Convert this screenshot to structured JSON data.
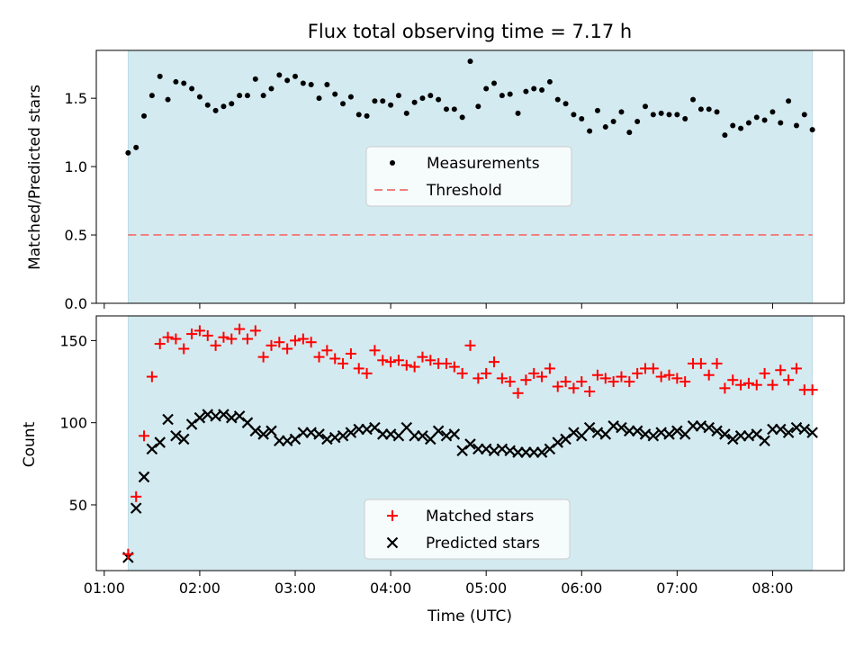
{
  "chart_data": [
    {
      "type": "scatter",
      "title": "Flux total observing time = 7.17 h",
      "xlabel": "",
      "ylabel": "Matched/Predicted stars",
      "xlim": [
        "00:55",
        "08:45"
      ],
      "ylim": [
        0,
        1.85
      ],
      "yticks": [
        0.0,
        0.5,
        1.0,
        1.5
      ],
      "ytick_labels": [
        "0.0",
        "0.5",
        "1.0",
        "1.5"
      ],
      "observing_window": [
        "01:15",
        "08:25"
      ],
      "colors": {
        "observing_window": "#d3eaf0",
        "measurements": "#000000",
        "threshold": "#f08080"
      },
      "legend_position": "center",
      "series": [
        {
          "name": "Measurements",
          "x": [
            "01:15",
            "01:20",
            "01:25",
            "01:30",
            "01:35",
            "01:40",
            "01:45",
            "01:50",
            "01:55",
            "02:00",
            "02:05",
            "02:10",
            "02:15",
            "02:20",
            "02:25",
            "02:30",
            "02:35",
            "02:40",
            "02:45",
            "02:50",
            "02:55",
            "03:00",
            "03:05",
            "03:10",
            "03:15",
            "03:20",
            "03:25",
            "03:30",
            "03:35",
            "03:40",
            "03:45",
            "03:50",
            "03:55",
            "04:00",
            "04:05",
            "04:10",
            "04:15",
            "04:20",
            "04:25",
            "04:30",
            "04:35",
            "04:40",
            "04:45",
            "04:50",
            "04:55",
            "05:00",
            "05:05",
            "05:10",
            "05:15",
            "05:20",
            "05:25",
            "05:30",
            "05:35",
            "05:40",
            "05:45",
            "05:50",
            "05:55",
            "06:00",
            "06:05",
            "06:10",
            "06:15",
            "06:20",
            "06:25",
            "06:30",
            "06:35",
            "06:40",
            "06:45",
            "06:50",
            "06:55",
            "07:00",
            "07:05",
            "07:10",
            "07:15",
            "07:20",
            "07:25",
            "07:30",
            "07:35",
            "07:40",
            "07:45",
            "07:50",
            "07:55",
            "08:00",
            "08:05",
            "08:10",
            "08:15",
            "08:20",
            "08:25"
          ],
          "y": [
            1.1,
            1.14,
            1.37,
            1.52,
            1.66,
            1.49,
            1.62,
            1.61,
            1.57,
            1.51,
            1.45,
            1.41,
            1.44,
            1.46,
            1.52,
            1.52,
            1.64,
            1.52,
            1.57,
            1.67,
            1.63,
            1.66,
            1.61,
            1.6,
            1.5,
            1.6,
            1.53,
            1.46,
            1.51,
            1.38,
            1.37,
            1.48,
            1.48,
            1.45,
            1.52,
            1.39,
            1.47,
            1.5,
            1.52,
            1.49,
            1.42,
            1.42,
            1.36,
            1.77,
            1.44,
            1.57,
            1.61,
            1.52,
            1.53,
            1.39,
            1.55,
            1.57,
            1.56,
            1.62,
            1.49,
            1.46,
            1.38,
            1.35,
            1.26,
            1.41,
            1.29,
            1.33,
            1.4,
            1.25,
            1.33,
            1.44,
            1.38,
            1.39,
            1.38,
            1.38,
            1.35,
            1.49,
            1.42,
            1.42,
            1.4,
            1.23,
            1.3,
            1.28,
            1.32,
            1.36,
            1.34,
            1.4,
            1.32,
            1.48,
            1.3,
            1.38,
            1.27
          ]
        },
        {
          "name": "Threshold",
          "y": 0.5
        }
      ]
    },
    {
      "type": "scatter",
      "title": "",
      "xlabel": "Time (UTC)",
      "ylabel": "Count",
      "xlim": [
        "00:55",
        "08:45"
      ],
      "ylim": [
        10,
        165
      ],
      "yticks": [
        50,
        100,
        150
      ],
      "ytick_labels": [
        "50",
        "100",
        "150"
      ],
      "xticks": [
        "01:00",
        "02:00",
        "03:00",
        "04:00",
        "05:00",
        "06:00",
        "07:00",
        "08:00"
      ],
      "xtick_labels": [
        "01:00",
        "02:00",
        "03:00",
        "04:00",
        "05:00",
        "06:00",
        "07:00",
        "08:00"
      ],
      "observing_window": [
        "01:15",
        "08:25"
      ],
      "colors": {
        "observing_window": "#d3eaf0",
        "matched": "#ff0000",
        "predicted": "#000000"
      },
      "legend_position": "lower center",
      "series": [
        {
          "name": "Matched stars",
          "x": [
            "01:15",
            "01:20",
            "01:25",
            "01:30",
            "01:35",
            "01:40",
            "01:45",
            "01:50",
            "01:55",
            "02:00",
            "02:05",
            "02:10",
            "02:15",
            "02:20",
            "02:25",
            "02:30",
            "02:35",
            "02:40",
            "02:45",
            "02:50",
            "02:55",
            "03:00",
            "03:05",
            "03:10",
            "03:15",
            "03:20",
            "03:25",
            "03:30",
            "03:35",
            "03:40",
            "03:45",
            "03:50",
            "03:55",
            "04:00",
            "04:05",
            "04:10",
            "04:15",
            "04:20",
            "04:25",
            "04:30",
            "04:35",
            "04:40",
            "04:45",
            "04:50",
            "04:55",
            "05:00",
            "05:05",
            "05:10",
            "05:15",
            "05:20",
            "05:25",
            "05:30",
            "05:35",
            "05:40",
            "05:45",
            "05:50",
            "05:55",
            "06:00",
            "06:05",
            "06:10",
            "06:15",
            "06:20",
            "06:25",
            "06:30",
            "06:35",
            "06:40",
            "06:45",
            "06:50",
            "06:55",
            "07:00",
            "07:05",
            "07:10",
            "07:15",
            "07:20",
            "07:25",
            "07:30",
            "07:35",
            "07:40",
            "07:45",
            "07:50",
            "07:55",
            "08:00",
            "08:05",
            "08:10",
            "08:15",
            "08:20",
            "08:25"
          ],
          "y": [
            20,
            55,
            92,
            128,
            148,
            152,
            151,
            145,
            154,
            156,
            153,
            147,
            152,
            151,
            157,
            151,
            156,
            140,
            147,
            149,
            145,
            150,
            151,
            149,
            140,
            144,
            139,
            136,
            142,
            133,
            130,
            144,
            138,
            137,
            138,
            135,
            134,
            140,
            138,
            136,
            136,
            134,
            130,
            147,
            127,
            130,
            137,
            127,
            125,
            118,
            126,
            130,
            128,
            133,
            122,
            125,
            121,
            125,
            119,
            129,
            127,
            125,
            128,
            125,
            130,
            133,
            133,
            128,
            129,
            127,
            125,
            136,
            136,
            129,
            136,
            121,
            126,
            123,
            124,
            123,
            130,
            123,
            132,
            126,
            133,
            120,
            120
          ]
        },
        {
          "name": "Predicted stars",
          "x": [
            "01:15",
            "01:20",
            "01:25",
            "01:30",
            "01:35",
            "01:40",
            "01:45",
            "01:50",
            "01:55",
            "02:00",
            "02:05",
            "02:10",
            "02:15",
            "02:20",
            "02:25",
            "02:30",
            "02:35",
            "02:40",
            "02:45",
            "02:50",
            "02:55",
            "03:00",
            "03:05",
            "03:10",
            "03:15",
            "03:20",
            "03:25",
            "03:30",
            "03:35",
            "03:40",
            "03:45",
            "03:50",
            "03:55",
            "04:00",
            "04:05",
            "04:10",
            "04:15",
            "04:20",
            "04:25",
            "04:30",
            "04:35",
            "04:40",
            "04:45",
            "04:50",
            "04:55",
            "05:00",
            "05:05",
            "05:10",
            "05:15",
            "05:20",
            "05:25",
            "05:30",
            "05:35",
            "05:40",
            "05:45",
            "05:50",
            "05:55",
            "06:00",
            "06:05",
            "06:10",
            "06:15",
            "06:20",
            "06:25",
            "06:30",
            "06:35",
            "06:40",
            "06:45",
            "06:50",
            "06:55",
            "07:00",
            "07:05",
            "07:10",
            "07:15",
            "07:20",
            "07:25",
            "07:30",
            "07:35",
            "07:40",
            "07:45",
            "07:50",
            "07:55",
            "08:00",
            "08:05",
            "08:10",
            "08:15",
            "08:20",
            "08:25"
          ],
          "y": [
            18,
            48,
            67,
            84,
            88,
            102,
            92,
            90,
            99,
            103,
            105,
            104,
            105,
            103,
            104,
            100,
            95,
            93,
            95,
            89,
            89,
            90,
            94,
            94,
            93,
            90,
            91,
            92,
            94,
            96,
            96,
            97,
            93,
            93,
            92,
            97,
            92,
            92,
            90,
            95,
            92,
            93,
            83,
            87,
            84,
            84,
            83,
            84,
            83,
            82,
            82,
            82,
            82,
            84,
            88,
            90,
            94,
            92,
            97,
            94,
            93,
            98,
            97,
            95,
            95,
            93,
            92,
            94,
            93,
            95,
            93,
            98,
            98,
            97,
            95,
            93,
            90,
            92,
            92,
            93,
            89,
            96,
            96,
            94,
            97,
            96,
            94
          ]
        }
      ]
    }
  ]
}
